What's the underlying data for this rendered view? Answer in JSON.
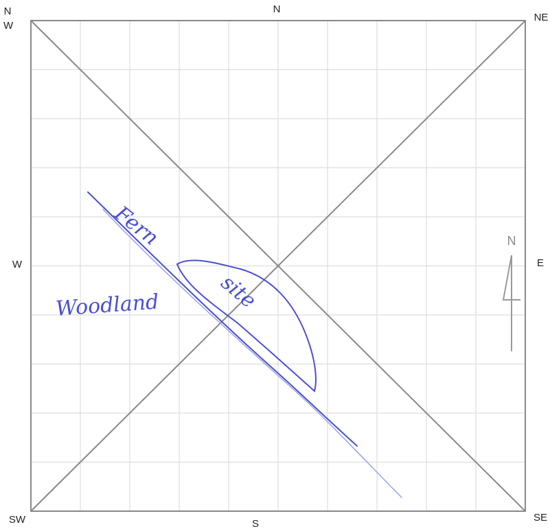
{
  "labels": {
    "n": "N",
    "ne": "NE",
    "nw": "NW",
    "w": "W",
    "e": "E",
    "sw": "SW",
    "s": "S",
    "se": "SE"
  },
  "compass": "N",
  "annotations": [
    "Fern",
    "site",
    "Woodland"
  ]
}
